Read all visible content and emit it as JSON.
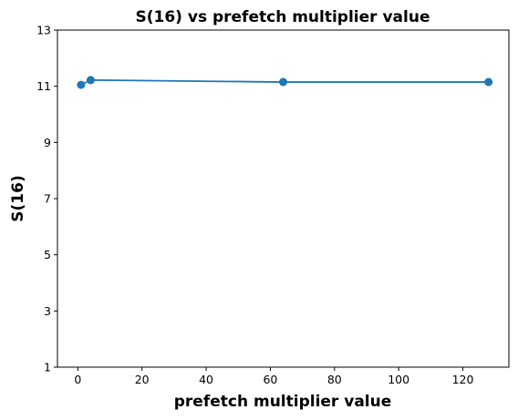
{
  "chart_data": {
    "type": "line",
    "title": "S(16) vs prefetch multiplier value",
    "xlabel": "prefetch multiplier value",
    "ylabel": "S(16)",
    "xlim": [
      -6.35,
      134.35
    ],
    "ylim": [
      1,
      13
    ],
    "xticks": [
      0,
      20,
      40,
      60,
      80,
      100,
      120
    ],
    "yticks": [
      1,
      3,
      5,
      7,
      9,
      11,
      13
    ],
    "grid": false,
    "series": [
      {
        "color": "#1f77b4",
        "marker": "circle",
        "x": [
          1,
          4,
          64,
          128
        ],
        "y": [
          11.05,
          11.22,
          11.15,
          11.15
        ]
      }
    ]
  }
}
